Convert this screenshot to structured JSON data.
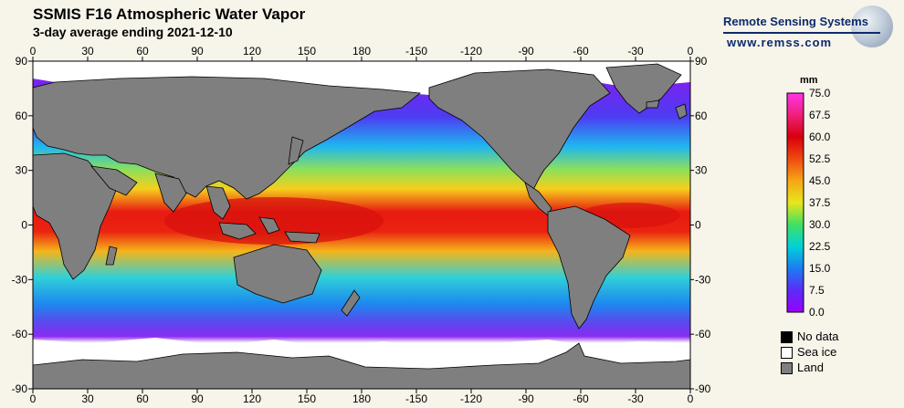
{
  "header": {
    "title": "SSMIS F16 Atmospheric Water Vapor",
    "subtitle": "3-day average ending 2021-12-10"
  },
  "brand": {
    "name": "Remote Sensing Systems",
    "url": "www.remss.com"
  },
  "map": {
    "lon_labels": [
      "0",
      "30",
      "60",
      "90",
      "120",
      "150",
      "180",
      "-150",
      "-120",
      "-90",
      "-60",
      "-30",
      "0"
    ],
    "lat_labels": [
      "90",
      "60",
      "30",
      "0",
      "-30",
      "-60",
      "-90"
    ],
    "colors": {
      "land": "#7f7f7f",
      "sea_ice": "#ffffff",
      "no_data": "#000000"
    }
  },
  "colorbar": {
    "unit": "mm",
    "ticks": [
      "75.0",
      "67.5",
      "60.0",
      "52.5",
      "45.0",
      "37.5",
      "30.0",
      "22.5",
      "15.0",
      "7.5",
      "0.0"
    ]
  },
  "key": {
    "items": [
      {
        "label": "No data",
        "color": "#000000"
      },
      {
        "label": "Sea ice",
        "color": "#ffffff"
      },
      {
        "label": "Land",
        "color": "#7f7f7f"
      }
    ]
  }
}
